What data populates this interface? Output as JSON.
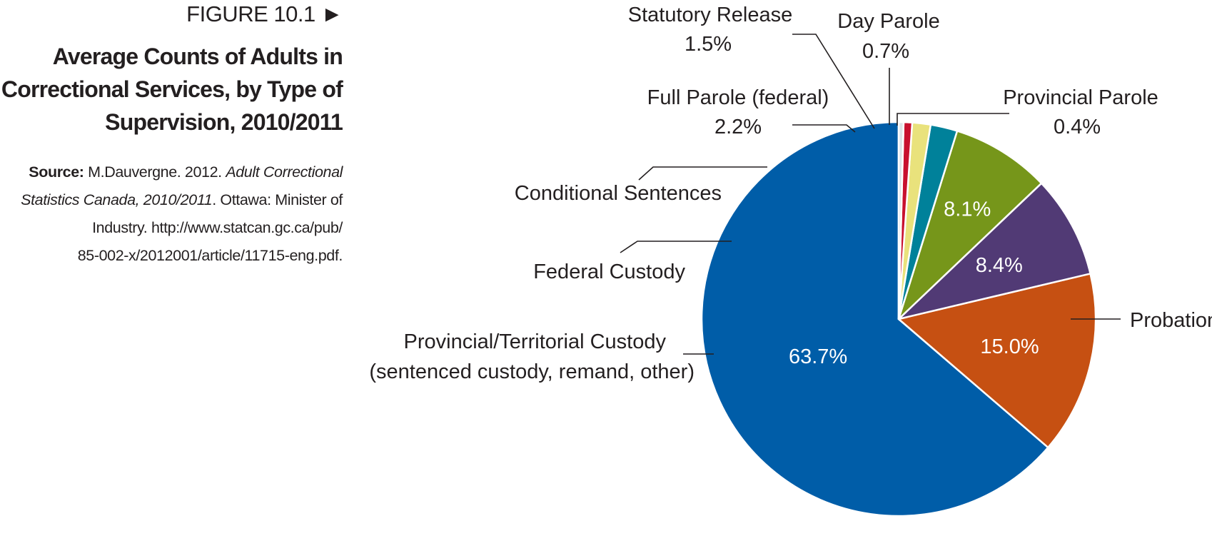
{
  "figure": {
    "label": "FIGURE 10.1 ►",
    "title_lines": [
      "Average Counts of Adults in",
      "Correctional Services, by Type of",
      "Supervision, 2010/2011"
    ],
    "source": {
      "prefix": "Source:",
      "author_year": " M.Dauvergne. 2012. ",
      "title_part1": "Adult Correctional",
      "title_part2": "Statistics Canada, 2010/2011",
      "publisher": ". Ottawa: Minister of",
      "line3": "Industry. http://www.statcan.gc.ca/pub/",
      "line4": "85-002-x/2012001/article/11715-eng.pdf."
    }
  },
  "chart_data": {
    "type": "pie",
    "title": "Average Counts of Adults in Correctional Services, by Type of Supervision, 2010/2011",
    "unit": "%",
    "slices": [
      {
        "label": "Probation",
        "value": 63.7,
        "value_label": "63.7%",
        "color": "#005da8"
      },
      {
        "label": "Provincial/Territorial Custody (sentenced custody, remand, other)",
        "value": 15.0,
        "value_label": "15.0%",
        "color": "#c65012"
      },
      {
        "label": "Federal Custody",
        "value": 8.4,
        "value_label": "8.4%",
        "color": "#513a75"
      },
      {
        "label": "Conditional Sentences",
        "value": 8.1,
        "value_label": "8.1%",
        "color": "#76961a"
      },
      {
        "label": "Full Parole (federal)",
        "value": 2.2,
        "value_label": "2.2%",
        "color": "#00819a"
      },
      {
        "label": "Statutory Release",
        "value": 1.5,
        "value_label": "1.5%",
        "color": "#e9e27c"
      },
      {
        "label": "Day Parole",
        "value": 0.7,
        "value_label": "0.7%",
        "color": "#c8102e"
      },
      {
        "label": "Provincial Parole",
        "value": 0.4,
        "value_label": "0.4%",
        "color": "#dde4e8"
      }
    ],
    "callouts": {
      "probation": "Probation",
      "prov_custody_line1": "Provincial/Territorial Custody",
      "prov_custody_line2": "(sentenced custody, remand, other)",
      "federal_custody": "Federal Custody",
      "conditional": "Conditional Sentences",
      "full_parole": "Full Parole (federal)",
      "full_parole_value": "2.2%",
      "statutory": "Statutory Release",
      "statutory_value": "1.5%",
      "day_parole": "Day Parole",
      "day_parole_value": "0.7%",
      "prov_parole": "Provincial Parole",
      "prov_parole_value": "0.4%"
    }
  }
}
